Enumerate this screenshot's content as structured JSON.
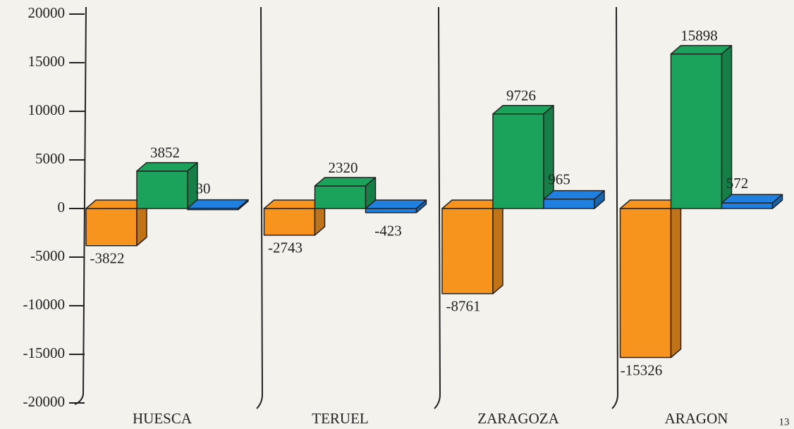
{
  "chart_data": {
    "type": "bar3d",
    "categories": [
      "HUESCA",
      "TERUEL",
      "ZARAGOZA",
      "ARAGON"
    ],
    "series": [
      {
        "color": "#f7941d",
        "values": [
          -3822,
          -2743,
          -8761,
          -15326
        ]
      },
      {
        "color": "#1ba35b",
        "values": [
          3852,
          2320,
          9726,
          15898
        ]
      },
      {
        "color": "#1f80e0",
        "values": [
          30,
          -423,
          965,
          572
        ]
      }
    ],
    "ylim": [
      -20000,
      20000
    ],
    "yticks": [
      -20000,
      -15000,
      -10000,
      -5000,
      0,
      5000,
      10000,
      15000,
      20000
    ],
    "page_number": "13"
  }
}
